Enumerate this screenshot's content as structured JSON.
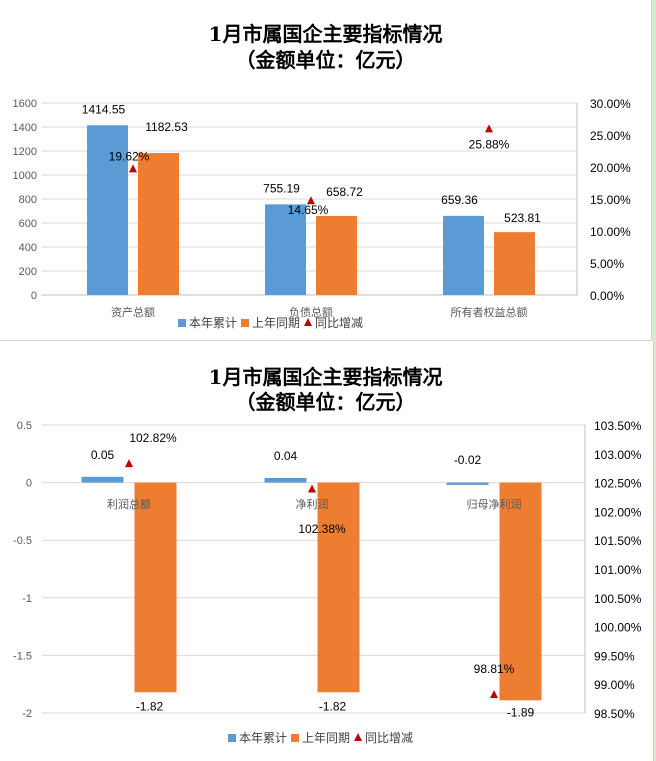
{
  "chart_data": [
    {
      "type": "bar",
      "title": "1月市属国企主要指标情况",
      "subtitle": "（金额单位：亿元）",
      "categories": [
        "资产总额",
        "负债总额",
        "所有者权益总额"
      ],
      "series": [
        {
          "name": "本年累计",
          "type": "bar",
          "axis": "left",
          "color": "#5b9bd5",
          "values": [
            1414.55,
            755.19,
            659.36
          ],
          "labels": [
            "1414.55",
            "755.19",
            "659.36"
          ]
        },
        {
          "name": "上年同期",
          "type": "bar",
          "axis": "left",
          "color": "#ed7d31",
          "values": [
            1182.53,
            658.72,
            523.81
          ],
          "labels": [
            "1182.53",
            "658.72",
            "523.81"
          ]
        },
        {
          "name": "同比增减",
          "type": "marker",
          "axis": "right",
          "color": "#c00000",
          "values": [
            19.62,
            14.65,
            25.88
          ],
          "labels": [
            "19.62%",
            "14.65%",
            "25.88%"
          ]
        }
      ],
      "ylim": [
        0,
        1600
      ],
      "yticks": [
        "0",
        "200",
        "400",
        "600",
        "800",
        "1000",
        "1200",
        "1400",
        "1600"
      ],
      "y2lim": [
        0,
        30
      ],
      "y2ticks": [
        "0.00%",
        "5.00%",
        "10.00%",
        "15.00%",
        "20.00%",
        "25.00%",
        "30.00%"
      ],
      "grid": true,
      "legend": "bottom"
    },
    {
      "type": "bar",
      "title": "1月市属国企主要指标情况",
      "subtitle": "（金额单位：亿元）",
      "categories": [
        "利润总额",
        "净利润",
        "归母净利润"
      ],
      "series": [
        {
          "name": "本年累计",
          "type": "bar",
          "axis": "left",
          "color": "#5b9bd5",
          "values": [
            0.05,
            0.04,
            -0.02
          ],
          "labels": [
            "0.05",
            "0.04",
            "-0.02"
          ]
        },
        {
          "name": "上年同期",
          "type": "bar",
          "axis": "left",
          "color": "#ed7d31",
          "values": [
            -1.82,
            -1.82,
            -1.89
          ],
          "labels": [
            "-1.82",
            "-1.82",
            "-1.89"
          ]
        },
        {
          "name": "同比增减",
          "type": "marker",
          "axis": "right",
          "color": "#c00000",
          "values": [
            102.82,
            102.38,
            98.81
          ],
          "labels": [
            "102.82%",
            "102.38%",
            "98.81%"
          ]
        }
      ],
      "ylim": [
        -2,
        0.5
      ],
      "yticks": [
        "-2",
        "-1.5",
        "-1",
        "-0.5",
        "0",
        "0.5"
      ],
      "y2lim": [
        98.5,
        103.5
      ],
      "y2ticks": [
        "98.50%",
        "99.00%",
        "99.50%",
        "100.00%",
        "100.50%",
        "101.00%",
        "101.50%",
        "102.00%",
        "102.50%",
        "103.00%",
        "103.50%"
      ],
      "grid": true,
      "legend": "bottom"
    }
  ]
}
